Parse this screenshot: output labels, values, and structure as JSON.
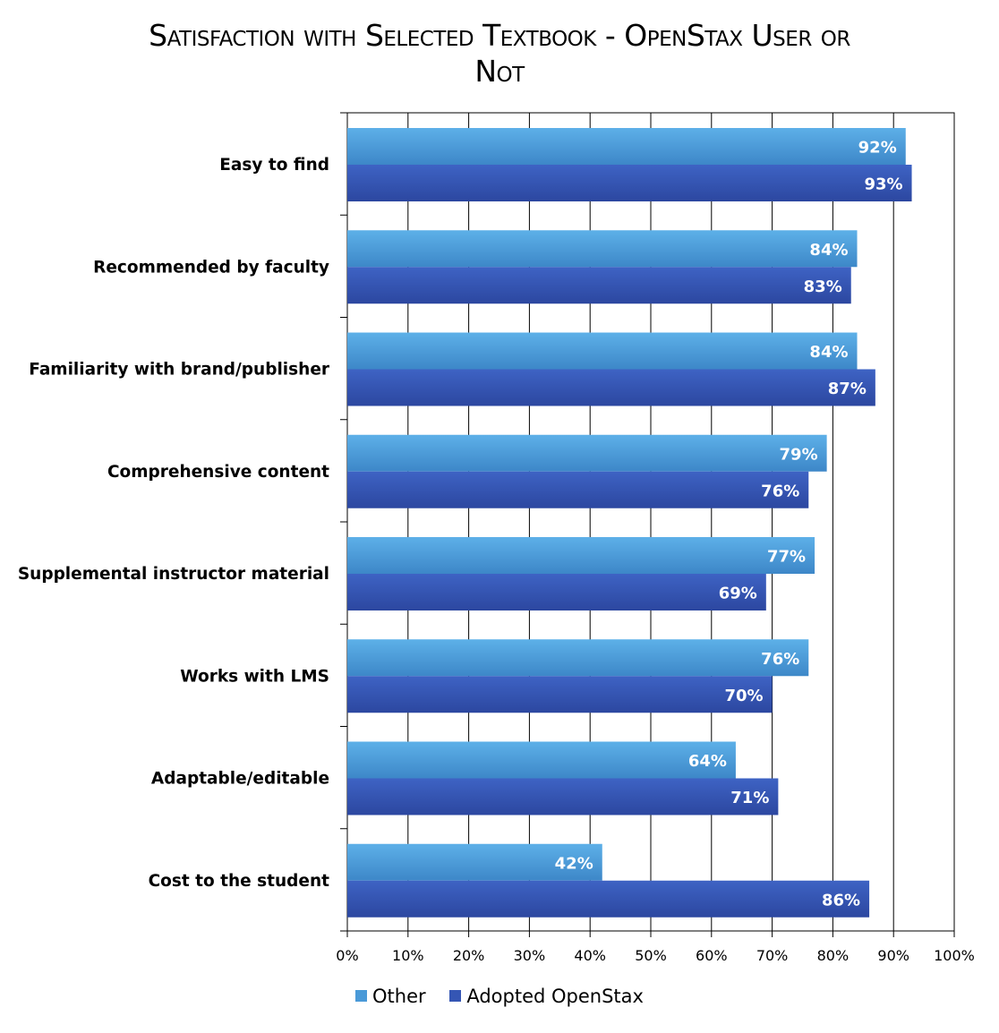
{
  "chart_data": {
    "type": "bar",
    "orientation": "horizontal",
    "title_lines": [
      "Satisfaction with Selected Textbook - OpenStax User or",
      "Not"
    ],
    "categories": [
      "Easy to find",
      "Recommended by faculty",
      "Familiarity with brand/publisher",
      "Comprehensive content",
      "Supplemental instructor material",
      "Works with LMS",
      "Adaptable/editable",
      "Cost to the student"
    ],
    "series": [
      {
        "name": "Other",
        "color": "#4a9ad8",
        "values": [
          92,
          84,
          84,
          79,
          77,
          76,
          64,
          42
        ],
        "labels": [
          "92%",
          "84%",
          "84%",
          "79%",
          "77%",
          "76%",
          "64%",
          "42%"
        ]
      },
      {
        "name": "Adopted OpenStax",
        "color": "#3556b4",
        "values": [
          93,
          83,
          87,
          76,
          69,
          70,
          71,
          86
        ],
        "labels": [
          "93%",
          "83%",
          "87%",
          "76%",
          "69%",
          "70%",
          "71%",
          "86%"
        ]
      }
    ],
    "xlim": [
      0,
      100
    ],
    "x_ticks": [
      "0%",
      "10%",
      "20%",
      "30%",
      "40%",
      "50%",
      "60%",
      "70%",
      "80%",
      "90%",
      "100%"
    ],
    "grid": true,
    "legend_position": "bottom"
  }
}
